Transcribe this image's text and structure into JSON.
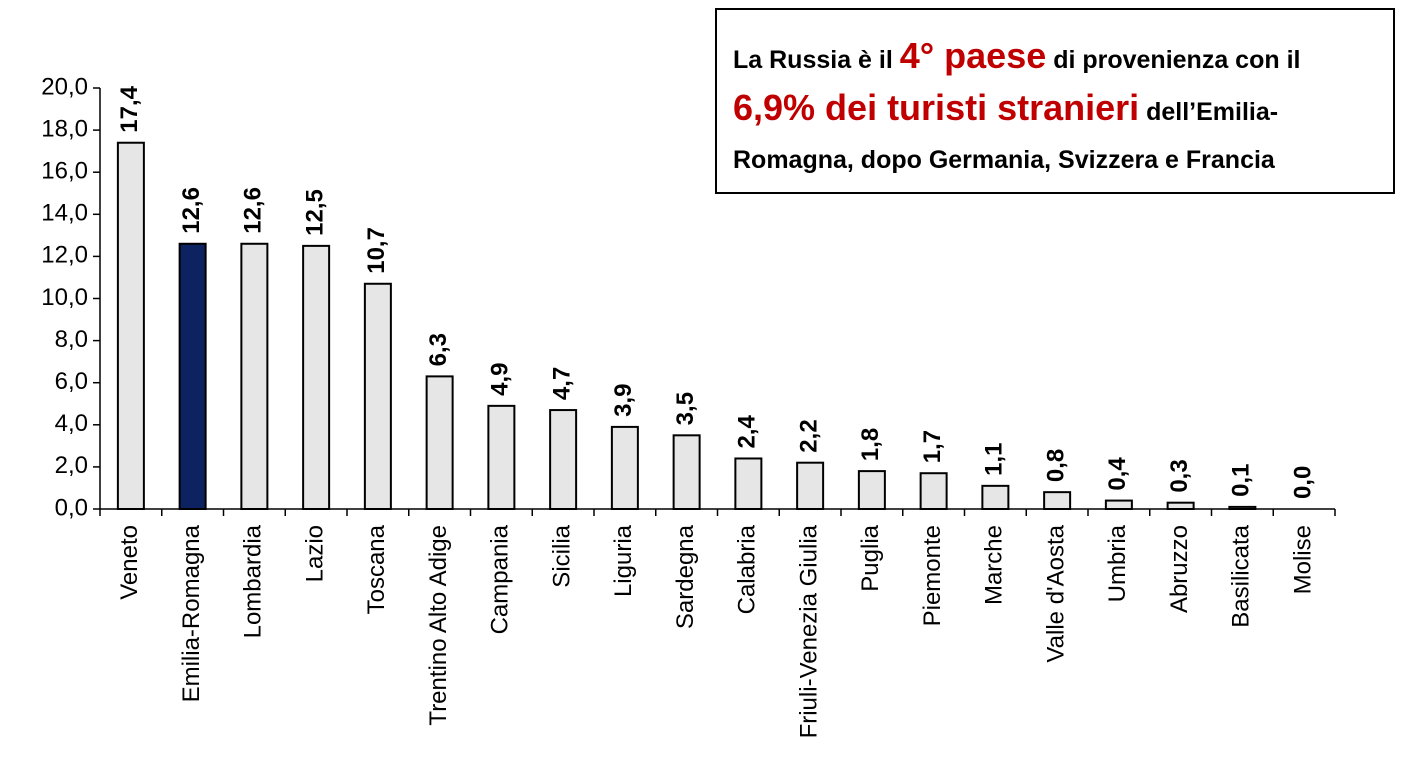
{
  "chart_data": {
    "type": "bar",
    "annotation": [
      "La Russia è il ",
      "4° paese",
      " di provenienza con il ",
      "6,9% dei turisti stranieri",
      " dell’Emilia-Romagna, dopo Germania, Svizzera e Francia"
    ],
    "categories": [
      "Veneto",
      "Emilia-Romagna",
      "Lombardia",
      "Lazio",
      "Toscana",
      "Trentino Alto Adige",
      "Campania",
      "Sicilia",
      "Liguria",
      "Sardegna",
      "Calabria",
      "Friuli-Venezia Giulia",
      "Puglia",
      "Piemonte",
      "Marche",
      "Valle d'Aosta",
      "Umbria",
      "Abruzzo",
      "Basilicata",
      "Molise"
    ],
    "values": [
      17.4,
      12.6,
      12.6,
      12.5,
      10.7,
      6.3,
      4.9,
      4.7,
      3.9,
      3.5,
      2.4,
      2.2,
      1.8,
      1.7,
      1.1,
      0.8,
      0.4,
      0.3,
      0.1,
      0.0
    ],
    "value_labels": [
      "17,4",
      "12,6",
      "12,6",
      "12,5",
      "10,7",
      "6,3",
      "4,9",
      "4,7",
      "3,9",
      "3,5",
      "2,4",
      "2,2",
      "1,8",
      "1,7",
      "1,1",
      "0,8",
      "0,4",
      "0,3",
      "0,1",
      "0,0"
    ],
    "colors": [
      "#e6e6e6",
      "#0d2260",
      "#e6e6e6",
      "#e6e6e6",
      "#e6e6e6",
      "#e6e6e6",
      "#e6e6e6",
      "#e6e6e6",
      "#e6e6e6",
      "#e6e6e6",
      "#e6e6e6",
      "#e6e6e6",
      "#e6e6e6",
      "#e6e6e6",
      "#e6e6e6",
      "#e6e6e6",
      "#e6e6e6",
      "#e6e6e6",
      "#e6e6e6",
      "#e6e6e6"
    ],
    "ylim": [
      0,
      20
    ],
    "yticks": [
      {
        "value": 0,
        "label": "0,0"
      },
      {
        "value": 2,
        "label": "2,0"
      },
      {
        "value": 4,
        "label": "4,0"
      },
      {
        "value": 6,
        "label": "6,0"
      },
      {
        "value": 8,
        "label": "8,0"
      },
      {
        "value": 10,
        "label": "10,0"
      },
      {
        "value": 12,
        "label": "12,0"
      },
      {
        "value": 14,
        "label": "14,0"
      },
      {
        "value": 16,
        "label": "16,0"
      },
      {
        "value": 18,
        "label": "18,0"
      },
      {
        "value": 20,
        "label": "20,0"
      }
    ],
    "grid": false
  }
}
